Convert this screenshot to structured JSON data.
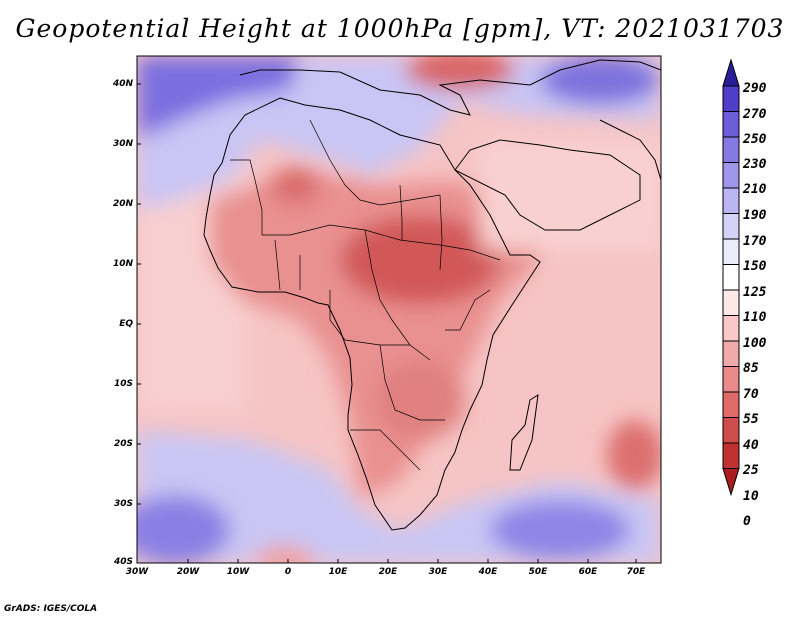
{
  "title": "Geopotential Height at 1000hPa [gpm], VT: 2021031703",
  "credit": "GrADS: IGES/COLA",
  "map": {
    "region": "Africa",
    "latitude_labels": [
      "40N",
      "30N",
      "20N",
      "10N",
      "EQ",
      "10S",
      "20S",
      "30S",
      "40S"
    ],
    "longitude_labels": [
      "30W",
      "20W",
      "10W",
      "0",
      "10E",
      "20E",
      "30E",
      "40E",
      "50E",
      "60E",
      "70E"
    ]
  },
  "colorbar": {
    "levels": [
      "290",
      "270",
      "250",
      "230",
      "210",
      "190",
      "170",
      "150",
      "125",
      "110",
      "100",
      "85",
      "70",
      "55",
      "40",
      "25",
      "10",
      "0"
    ],
    "colors": [
      "#2a1d9a",
      "#4e3ec8",
      "#6b5ed8",
      "#857ae3",
      "#9f97ec",
      "#bab5f3",
      "#d4d2f8",
      "#ececfb",
      "#ffffff",
      "#fde8e8",
      "#f9c8c8",
      "#f2a9a9",
      "#ea8a8a",
      "#df6a6a",
      "#d04d4d",
      "#c03232",
      "#aa1e1e"
    ]
  }
}
